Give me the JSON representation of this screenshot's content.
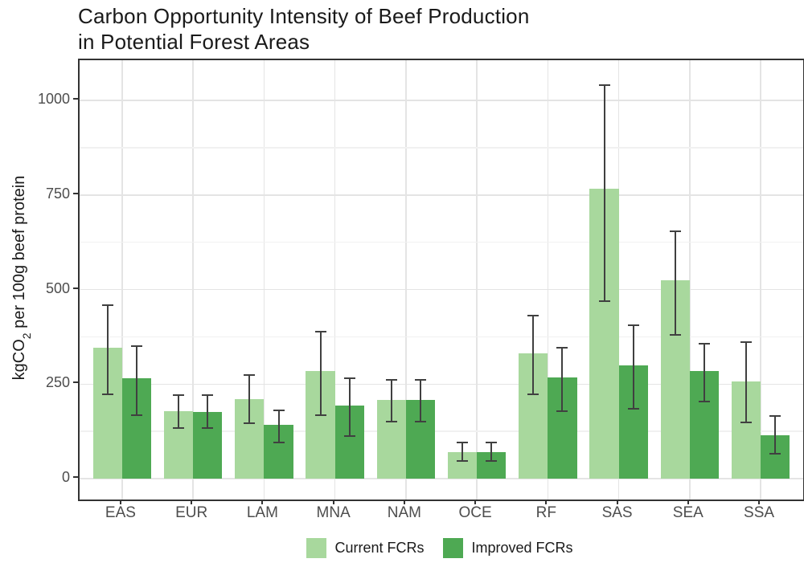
{
  "chart_data": {
    "type": "bar",
    "title": "Carbon Opportunity Intensity of Beef Production in Potential Forest Areas",
    "title_line1": "Carbon Opportunity Intensity of Beef Production",
    "title_line2": "in Potential Forest Areas",
    "ylabel": "kgCO2 per 100g beef protein",
    "ylabel_prefix": "kgCO",
    "ylabel_sub": "2",
    "ylabel_suffix": " per 100g beef protein",
    "xlabel": "",
    "categories": [
      "EAS",
      "EUR",
      "LAM",
      "MNA",
      "NAM",
      "OCE",
      "RF",
      "SAS",
      "SEA",
      "SSA"
    ],
    "series": [
      {
        "name": "Current FCRs",
        "color": "#a8d89d",
        "values": [
          347,
          178,
          210,
          284,
          209,
          71,
          331,
          766,
          524,
          256
        ],
        "error_low": [
          222,
          133,
          146,
          167,
          150,
          46,
          224,
          469,
          380,
          148
        ],
        "error_high": [
          458,
          221,
          275,
          388,
          262,
          95,
          430,
          1040,
          654,
          362
        ]
      },
      {
        "name": "Improved FCRs",
        "color": "#4ea953",
        "values": [
          265,
          177,
          142,
          194,
          209,
          71,
          268,
          299,
          285,
          115
        ],
        "error_low": [
          167,
          133,
          96,
          113,
          150,
          46,
          179,
          184,
          205,
          67
        ],
        "error_high": [
          350,
          221,
          181,
          265,
          262,
          95,
          347,
          406,
          356,
          165
        ]
      }
    ],
    "yticks": [
      0,
      250,
      500,
      750,
      1000
    ],
    "minor_gridlines": [
      125,
      375,
      625,
      875
    ],
    "ylim": [
      -55,
      1106
    ],
    "grid": "major+minor horizontal, major vertical at category centers",
    "legend_position": "bottom-center",
    "colors": {
      "grid_major": "#e4e4e4",
      "grid_minor": "#f1f1f1",
      "panel_border": "#333333",
      "error_bar": "#404040",
      "axis_text": "#4d4d4d",
      "title_text": "#1a1a1a"
    }
  }
}
